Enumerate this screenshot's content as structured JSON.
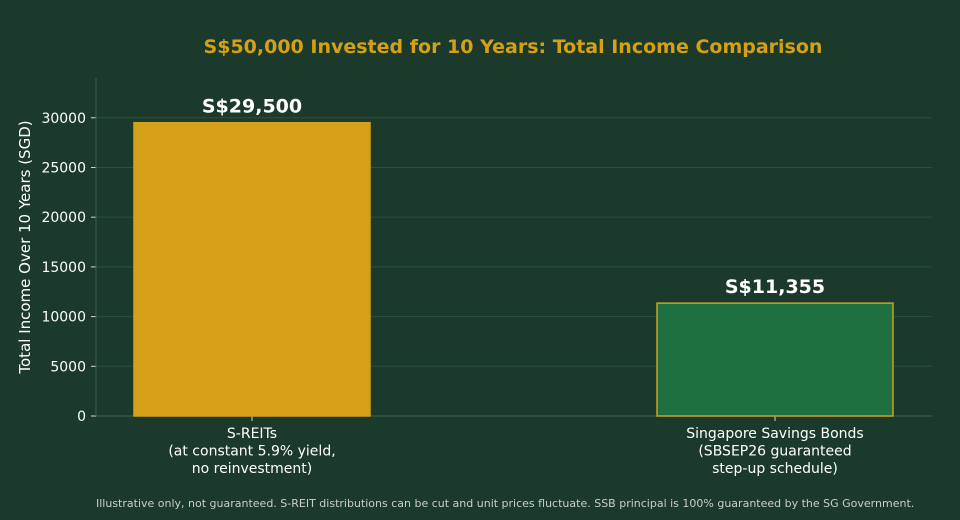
{
  "chart_data": {
    "type": "bar",
    "title": "S$50,000 Invested for 10 Years: Total Income Comparison",
    "xlabel": "",
    "ylabel": "Total Income Over 10 Years (SGD)",
    "categories": [
      [
        "S-REITs",
        "(at constant 5.9% yield,",
        "no reinvestment)"
      ],
      [
        "Singapore Savings Bonds",
        "(SBSEP26 guaranteed",
        "step-up schedule)"
      ]
    ],
    "values": [
      29500,
      11355
    ],
    "data_labels": [
      "S$29,500",
      "S$11,355"
    ],
    "ylim": [
      0,
      34000
    ],
    "yticks": [
      0,
      5000,
      10000,
      15000,
      20000,
      25000,
      30000
    ],
    "grid": true,
    "colors": {
      "background": "#1b3a2c",
      "title": "#d4a017",
      "bars": [
        "#d4a017",
        "#1e7040"
      ],
      "bar_edges": [
        "#d4a017",
        "#c9a227"
      ],
      "text": "#ffffff",
      "grid": "#2a5040"
    }
  },
  "footnote": "Illustrative only, not guaranteed. S-REIT distributions can be cut and unit prices fluctuate. SSB principal is 100% guaranteed by the SG Government."
}
